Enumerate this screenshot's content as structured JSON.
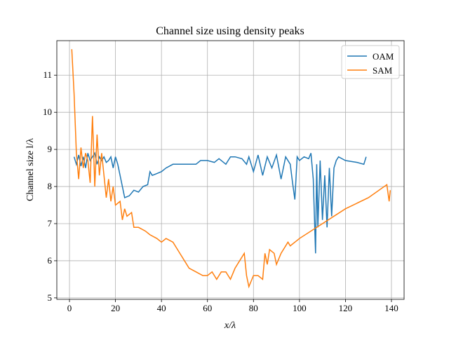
{
  "chart_data": {
    "type": "line",
    "title": "Channel size using density peaks",
    "xlabel": "x/λ",
    "ylabel": "Channel size l/λ",
    "xlim": [
      -5.5,
      145.5
    ],
    "ylim": [
      4.96,
      11.93
    ],
    "xticks": [
      0,
      20,
      40,
      60,
      80,
      100,
      120,
      140
    ],
    "yticks": [
      5,
      6,
      7,
      8,
      9,
      10,
      11
    ],
    "grid": true,
    "legend": "upper right",
    "series": [
      {
        "name": "OAM",
        "color": "#1f77b4",
        "x": [
          2,
          3,
          4,
          5,
          6,
          7,
          8,
          9,
          10,
          11,
          12,
          13,
          14,
          15,
          16,
          17,
          18,
          19,
          20,
          21,
          22,
          24,
          26,
          28,
          30,
          32,
          34,
          35,
          36,
          38,
          40,
          42,
          45,
          50,
          55,
          57,
          60,
          63,
          65,
          68,
          70,
          72,
          75,
          77,
          78,
          80,
          82,
          84,
          86,
          88,
          90,
          92,
          94,
          96,
          97,
          98,
          99,
          100,
          102,
          104,
          105,
          106,
          107,
          107.5,
          108,
          109,
          110,
          111,
          112,
          113,
          114,
          115,
          116,
          117,
          120,
          125,
          128,
          129
        ],
        "values": [
          8.8,
          8.6,
          8.85,
          8.55,
          8.8,
          8.5,
          8.9,
          8.7,
          8.8,
          8.9,
          8.6,
          8.8,
          8.7,
          8.8,
          8.65,
          8.7,
          8.8,
          8.5,
          8.8,
          8.6,
          8.3,
          7.7,
          7.75,
          7.9,
          7.85,
          8.0,
          8.05,
          8.4,
          8.3,
          8.35,
          8.4,
          8.5,
          8.6,
          8.6,
          8.6,
          8.7,
          8.7,
          8.65,
          8.75,
          8.6,
          8.8,
          8.8,
          8.75,
          8.6,
          8.8,
          8.4,
          8.85,
          8.3,
          8.8,
          8.5,
          8.85,
          8.2,
          8.8,
          8.6,
          8.1,
          7.65,
          8.8,
          8.7,
          8.8,
          8.75,
          8.9,
          8.2,
          6.2,
          8.6,
          6.9,
          8.7,
          7.1,
          8.3,
          6.9,
          8.5,
          7.2,
          8.5,
          8.7,
          8.8,
          8.7,
          8.65,
          8.6,
          8.8
        ]
      },
      {
        "name": "SAM",
        "color": "#ff7f0e",
        "x": [
          1,
          2,
          3,
          4,
          5,
          6,
          7,
          8,
          9,
          10,
          11,
          12,
          13,
          14,
          16,
          17,
          18,
          19,
          20,
          22,
          23,
          24,
          25,
          27,
          28,
          30,
          33,
          35,
          38,
          40,
          42,
          45,
          48,
          50,
          52,
          55,
          58,
          60,
          62,
          64,
          66,
          68,
          70,
          72,
          74,
          76,
          77,
          78,
          80,
          82,
          84,
          85,
          86,
          87,
          89,
          90,
          92,
          95,
          96,
          100,
          110,
          120,
          130,
          138,
          139,
          139.5
        ],
        "values": [
          11.7,
          10.5,
          8.9,
          8.2,
          9.05,
          8.5,
          8.9,
          8.7,
          8.1,
          9.9,
          8.0,
          9.4,
          8.3,
          8.9,
          7.7,
          8.2,
          7.6,
          8.0,
          7.5,
          7.6,
          7.1,
          7.4,
          7.2,
          7.3,
          6.9,
          6.9,
          6.8,
          6.7,
          6.6,
          6.5,
          6.6,
          6.5,
          6.2,
          6.0,
          5.8,
          5.7,
          5.6,
          5.6,
          5.7,
          5.5,
          5.7,
          5.7,
          5.5,
          5.8,
          6.0,
          6.2,
          5.6,
          5.3,
          5.6,
          5.6,
          5.5,
          6.2,
          5.9,
          6.3,
          6.2,
          5.9,
          6.2,
          6.5,
          6.4,
          6.6,
          7.0,
          7.4,
          7.7,
          8.05,
          7.6,
          7.9
        ]
      }
    ]
  }
}
